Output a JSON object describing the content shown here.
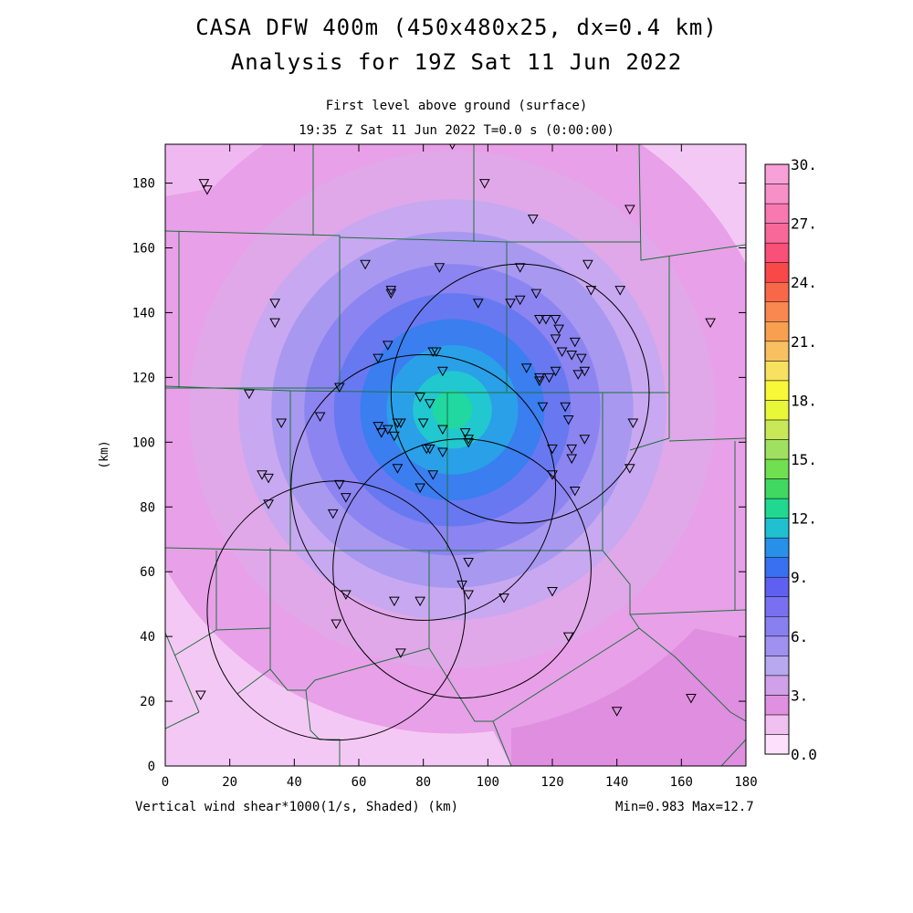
{
  "title_line1": "CASA DFW 400m (450x480x25, dx=0.4 km)",
  "title_line2": "Analysis for 19Z Sat 11 Jun 2022",
  "subtitle_line1": "First level above ground (surface)",
  "subtitle_line2": "19:35 Z Sat 11 Jun 2022   T=0.0 s (0:00:00)",
  "xaxis": {
    "label": "(km)",
    "ticks": [
      "0",
      "20",
      "40",
      "60",
      "80",
      "100",
      "120",
      "140",
      "160",
      "180"
    ]
  },
  "yaxis": {
    "label": "(km)",
    "ticks": [
      "0",
      "20",
      "40",
      "60",
      "80",
      "100",
      "120",
      "140",
      "160",
      "180"
    ]
  },
  "field_label": "Vertical wind shear*1000(1/s, Shaded)",
  "min_max": "Min=0.983 Max=12.7",
  "colorbar": {
    "labels": [
      "30.",
      "27.",
      "24.",
      "21.",
      "18.",
      "15.",
      "12.",
      "9.",
      "6.",
      "3.",
      "0.0"
    ],
    "colors": [
      "#fce0fc",
      "#f0c0f0",
      "#e090e0",
      "#d0a0e8",
      "#b8a8f0",
      "#a090f0",
      "#8880f0",
      "#7870f0",
      "#6060f0",
      "#3870f0",
      "#2890e8",
      "#20c0d0",
      "#20d890",
      "#40d860",
      "#70e050",
      "#a0e060",
      "#c8e858",
      "#e8f838",
      "#f8f838",
      "#f8e060",
      "#f8c060",
      "#f8a050",
      "#f88850",
      "#f86848",
      "#f84848",
      "#f85078",
      "#f86898",
      "#f878b0",
      "#f890c8",
      "#f8a0d8"
    ]
  },
  "map": {
    "center_km": [
      89,
      110
    ],
    "levels": [
      {
        "r": 100,
        "color": "#e8a0e8"
      },
      {
        "r": 80,
        "color": "#e0a8e8"
      },
      {
        "r": 65,
        "color": "#c8a8f0"
      },
      {
        "r": 55,
        "color": "#a898f0"
      },
      {
        "r": 45,
        "color": "#8c84f0"
      },
      {
        "r": 36,
        "color": "#6878f0"
      },
      {
        "r": 28,
        "color": "#3a7ef0"
      },
      {
        "r": 20,
        "color": "#2aa0e8"
      },
      {
        "r": 12,
        "color": "#22c8d0"
      },
      {
        "r": 6,
        "color": "#20d8a0"
      }
    ],
    "radars": [
      {
        "x": 110,
        "y": 115,
        "r": 40
      },
      {
        "x": 80,
        "y": 86,
        "r": 41
      },
      {
        "x": 92,
        "y": 61,
        "r": 40
      },
      {
        "x": 53,
        "y": 48,
        "r": 40
      }
    ],
    "stations": [
      [
        12,
        180
      ],
      [
        13,
        178
      ],
      [
        89,
        192
      ],
      [
        99,
        180
      ],
      [
        114,
        169
      ],
      [
        144,
        172
      ],
      [
        34,
        143
      ],
      [
        34,
        137
      ],
      [
        62,
        155
      ],
      [
        70,
        147
      ],
      [
        70,
        146
      ],
      [
        85,
        154
      ],
      [
        110,
        154
      ],
      [
        131,
        155
      ],
      [
        132,
        147
      ],
      [
        141,
        147
      ],
      [
        169,
        137
      ],
      [
        115,
        146
      ],
      [
        107,
        143
      ],
      [
        97,
        143
      ],
      [
        110,
        144
      ],
      [
        116,
        138
      ],
      [
        118,
        138
      ],
      [
        121,
        138
      ],
      [
        121,
        132
      ],
      [
        122,
        135
      ],
      [
        127,
        131
      ],
      [
        123,
        128
      ],
      [
        126,
        127
      ],
      [
        129,
        126
      ],
      [
        130,
        122
      ],
      [
        128,
        121
      ],
      [
        121,
        122
      ],
      [
        112,
        123
      ],
      [
        116,
        119
      ],
      [
        119,
        120
      ],
      [
        84,
        128
      ],
      [
        83,
        128
      ],
      [
        86,
        122
      ],
      [
        69,
        130
      ],
      [
        66,
        126
      ],
      [
        54,
        117
      ],
      [
        26,
        115
      ],
      [
        36,
        106
      ],
      [
        48,
        108
      ],
      [
        73,
        106
      ],
      [
        72,
        106
      ],
      [
        69,
        104
      ],
      [
        71,
        102
      ],
      [
        66,
        105
      ],
      [
        67,
        103
      ],
      [
        79,
        114
      ],
      [
        80,
        106
      ],
      [
        82,
        112
      ],
      [
        86,
        104
      ],
      [
        93,
        103
      ],
      [
        94,
        100
      ],
      [
        94,
        101
      ],
      [
        81,
        98
      ],
      [
        82,
        98
      ],
      [
        86,
        97
      ],
      [
        72,
        92
      ],
      [
        79,
        86
      ],
      [
        83,
        90
      ],
      [
        117,
        111
      ],
      [
        124,
        111
      ],
      [
        125,
        107
      ],
      [
        116,
        120
      ],
      [
        120,
        98
      ],
      [
        126,
        98
      ],
      [
        126,
        95
      ],
      [
        130,
        101
      ],
      [
        120,
        90
      ],
      [
        127,
        85
      ],
      [
        144,
        92
      ],
      [
        145,
        106
      ],
      [
        30,
        90
      ],
      [
        32,
        89
      ],
      [
        32,
        81
      ],
      [
        54,
        87
      ],
      [
        56,
        83
      ],
      [
        52,
        78
      ],
      [
        94,
        63
      ],
      [
        105,
        52
      ],
      [
        120,
        54
      ],
      [
        125,
        40
      ],
      [
        92,
        56
      ],
      [
        94,
        53
      ],
      [
        79,
        51
      ],
      [
        71,
        51
      ],
      [
        56,
        53
      ],
      [
        53,
        44
      ],
      [
        73,
        35
      ],
      [
        11,
        22
      ],
      [
        140,
        17
      ],
      [
        163,
        21
      ]
    ]
  }
}
